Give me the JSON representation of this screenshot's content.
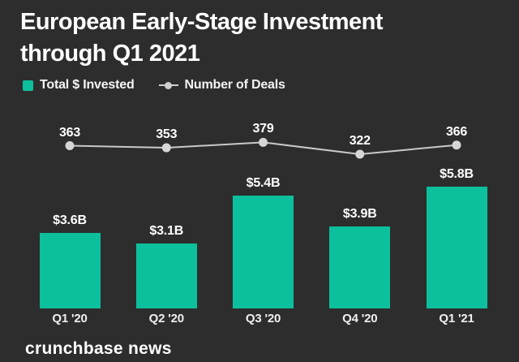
{
  "header": {
    "title_line1": "European Early-Stage Investment",
    "title_line2": "through Q1 2021"
  },
  "legend": {
    "items": [
      {
        "label": "Total $ Invested",
        "marker": "square",
        "color": "#0cc09d"
      },
      {
        "label": "Number of Deals",
        "marker": "line-dot",
        "color": "#cfcfcf"
      }
    ]
  },
  "footer": {
    "brand": "crunchbase news"
  },
  "colors": {
    "background": "#2e2d2d",
    "bar": "#0cc09d",
    "line": "#c9c9c9",
    "dot": "#d6d6d6",
    "text": "#ffffff"
  },
  "chart_data": {
    "type": "bar",
    "title": "European Early-Stage Investment through Q1 2021",
    "categories": [
      "Q1 '20",
      "Q2 '20",
      "Q3 '20",
      "Q4 '20",
      "Q1 '21"
    ],
    "series": [
      {
        "name": "Total $ Invested",
        "type": "bar",
        "unit": "USD billions",
        "values": [
          3.6,
          3.1,
          5.4,
          3.9,
          5.8
        ],
        "labels": [
          "$3.6B",
          "$3.1B",
          "$5.4B",
          "$3.9B",
          "$5.8B"
        ],
        "color": "#0cc09d"
      },
      {
        "name": "Number of Deals",
        "type": "line",
        "values": [
          363,
          353,
          379,
          322,
          366
        ],
        "labels": [
          "363",
          "353",
          "379",
          "322",
          "366"
        ],
        "color": "#cfcfcf"
      }
    ],
    "legend_position": "top-left",
    "grid": false,
    "value_labels": "above",
    "source": "crunchbase news"
  }
}
